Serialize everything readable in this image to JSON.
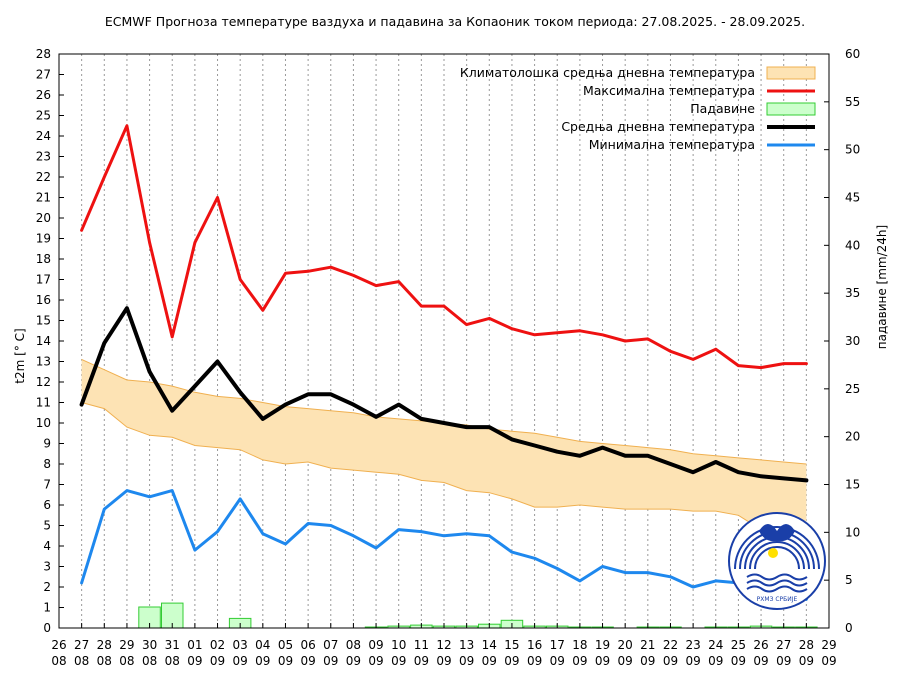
{
  "chart_data": {
    "type": "line",
    "title": "ECMWF Прогноза температуре ваздуха и падавина за Копаоник током периода: 27.08.2025. - 28.09.2025.",
    "ylabel": "t2m [° C]",
    "y2label": "падавине [mm/24h]",
    "ylim": [
      0,
      28
    ],
    "y2lim": [
      0,
      60
    ],
    "xlim": [
      26.0,
      29.0
    ],
    "grid": "vertical dashed, daily",
    "legend": "top-right",
    "tick_days": [
      "26",
      "27",
      "28",
      "29",
      "30",
      "31",
      "01",
      "02",
      "03",
      "04",
      "05",
      "06",
      "07",
      "08",
      "09",
      "10",
      "11",
      "12",
      "13",
      "14",
      "15",
      "16",
      "17",
      "18",
      "19",
      "20",
      "21",
      "22",
      "23",
      "24",
      "25",
      "26",
      "27",
      "28",
      "29"
    ],
    "tick_months": [
      "08",
      "08",
      "08",
      "08",
      "08",
      "08",
      "09",
      "09",
      "09",
      "09",
      "09",
      "09",
      "09",
      "09",
      "09",
      "09",
      "09",
      "09",
      "09",
      "09",
      "09",
      "09",
      "09",
      "09",
      "09",
      "09",
      "09",
      "09",
      "09",
      "09",
      "09",
      "09",
      "09",
      "09",
      "09"
    ],
    "x": [
      "27.08.",
      "28.08.",
      "29.08.",
      "30.08.",
      "31.08.",
      "01.09.",
      "02.09.",
      "03.09.",
      "04.09.",
      "05.09.",
      "06.09.",
      "07.09.",
      "08.09.",
      "09.09.",
      "10.09.",
      "11.09.",
      "12.09.",
      "13.09.",
      "14.09.",
      "15.09.",
      "16.09.",
      "17.09.",
      "18.09.",
      "19.09.",
      "20.09.",
      "21.09.",
      "22.09.",
      "23.09.",
      "24.09.",
      "25.09.",
      "26.09.",
      "27.09.",
      "28.09."
    ],
    "series": [
      {
        "name": "Климатолошка средња дневна температура",
        "kind": "band",
        "color": "#fde3b4",
        "edge": "#f0b050",
        "upper": [
          13.1,
          12.6,
          12.1,
          12.0,
          11.8,
          11.5,
          11.3,
          11.2,
          11.0,
          10.8,
          10.7,
          10.6,
          10.5,
          10.3,
          10.2,
          10.1,
          10.0,
          9.9,
          9.7,
          9.6,
          9.5,
          9.3,
          9.1,
          9.0,
          8.9,
          8.8,
          8.7,
          8.5,
          8.4,
          8.3,
          8.2,
          8.1,
          8.0
        ],
        "lower": [
          11.0,
          10.7,
          9.8,
          9.4,
          9.3,
          8.9,
          8.8,
          8.7,
          8.2,
          8.0,
          8.1,
          7.8,
          7.7,
          7.6,
          7.5,
          7.2,
          7.1,
          6.7,
          6.6,
          6.3,
          5.9,
          5.9,
          6.0,
          5.9,
          5.8,
          5.8,
          5.8,
          5.7,
          5.7,
          5.5,
          4.8,
          4.6,
          4.5
        ]
      },
      {
        "name": "Максимална температура",
        "kind": "line",
        "color": "#ee1111",
        "values": [
          19.4,
          22.0,
          24.5,
          18.8,
          14.2,
          18.8,
          21.0,
          17.0,
          15.5,
          17.3,
          17.4,
          17.6,
          17.2,
          16.7,
          16.9,
          15.7,
          15.7,
          14.8,
          15.1,
          14.6,
          14.3,
          14.4,
          14.5,
          14.3,
          14.0,
          14.1,
          13.5,
          13.1,
          13.6,
          12.8,
          12.7,
          12.9,
          12.9
        ]
      },
      {
        "name": "Падавине",
        "kind": "bar",
        "axis": "right",
        "color": "#ccffcc",
        "edge": "#33cc33",
        "values": [
          0,
          0,
          0,
          2.2,
          2.6,
          0,
          0,
          1.0,
          0,
          0,
          0,
          0,
          0,
          0.1,
          0.2,
          0.3,
          0.2,
          0.2,
          0.4,
          0.8,
          0.2,
          0.2,
          0.1,
          0.1,
          0,
          0.1,
          0.1,
          0,
          0.1,
          0.1,
          0.2,
          0.1,
          0.1
        ]
      },
      {
        "name": "Средња дневна температура",
        "kind": "line",
        "color": "#000000",
        "values": [
          10.9,
          13.9,
          15.6,
          12.5,
          10.6,
          11.8,
          13.0,
          11.5,
          10.2,
          10.9,
          11.4,
          11.4,
          10.9,
          10.3,
          10.9,
          10.2,
          10.0,
          9.8,
          9.8,
          9.2,
          8.9,
          8.6,
          8.4,
          8.8,
          8.4,
          8.4,
          8.0,
          7.6,
          8.1,
          7.6,
          7.4,
          7.3,
          7.2
        ]
      },
      {
        "name": "Минимална температура",
        "kind": "line",
        "color": "#1e88ee",
        "values": [
          2.2,
          5.8,
          6.7,
          6.4,
          6.7,
          3.8,
          4.7,
          6.3,
          4.6,
          4.1,
          5.1,
          5.0,
          4.5,
          3.9,
          4.8,
          4.7,
          4.5,
          4.6,
          4.5,
          3.7,
          3.4,
          2.9,
          2.3,
          3.0,
          2.7,
          2.7,
          2.5,
          2.0,
          2.3,
          2.2,
          2.0,
          1.8,
          1.4
        ]
      }
    ]
  },
  "logo": {
    "name": "rhmz-serbia-logo",
    "text": "РХМЗ СРБИЈЕ"
  }
}
